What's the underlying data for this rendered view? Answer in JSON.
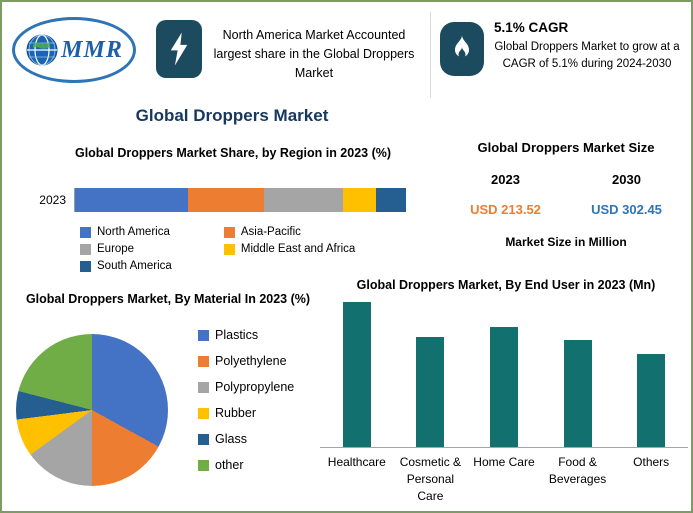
{
  "header": {
    "logo_text": "MMR",
    "highlight_text": "North America Market Accounted largest share in the Global Droppers Market",
    "cagr_title": "5.1% CAGR",
    "cagr_text": "Global Droppers Market to grow at a CAGR of 5.1% during 2024-2030",
    "icon_bg_color": "#1C4A5E"
  },
  "page_title": "Global Droppers Market",
  "title_color": "#17375E",
  "market_size": {
    "title": "Global Droppers Market Size",
    "year_start": "2023",
    "year_end": "2030",
    "value_start": "USD 213.52",
    "value_end": "USD 302.45",
    "value_start_color": "#ED7D31",
    "value_end_color": "#2E75B6",
    "note": "Market Size in Million"
  },
  "chart_data": [
    {
      "type": "bar",
      "subtype": "stacked-horizontal",
      "title": "Global Droppers Market Share, by Region in 2023 (%)",
      "categories": [
        "2023"
      ],
      "series": [
        {
          "name": "North America",
          "values": [
            34
          ],
          "color": "#4472C4"
        },
        {
          "name": "Asia-Pacific",
          "values": [
            23
          ],
          "color": "#ED7D31"
        },
        {
          "name": "Europe",
          "values": [
            24
          ],
          "color": "#A5A5A5"
        },
        {
          "name": "Middle East and Africa",
          "values": [
            10
          ],
          "color": "#FFC000"
        },
        {
          "name": "South America",
          "values": [
            9
          ],
          "color": "#255E91"
        }
      ],
      "units": "%",
      "xlim": [
        0,
        100
      ],
      "legend_position": "bottom",
      "grid": false
    },
    {
      "type": "pie",
      "title": "Global Droppers Market, By Material In 2023 (%)",
      "labels": [
        "Plastics",
        "Polyethylene",
        "Polypropylene",
        "Rubber",
        "Glass",
        "other"
      ],
      "values": [
        33,
        17,
        15,
        8,
        6,
        21
      ],
      "colors": [
        "#4472C4",
        "#ED7D31",
        "#A5A5A5",
        "#FFC000",
        "#255E91",
        "#70AD47"
      ],
      "units": "%",
      "legend_position": "right"
    },
    {
      "type": "bar",
      "title": "Global Droppers Market, By End User in 2023 (Mn)",
      "categories": [
        "Healthcare",
        "Cosmetic & Personal Care",
        "Home Care",
        "Food & Beverages",
        "Others"
      ],
      "values": [
        145,
        110,
        120,
        107,
        93
      ],
      "color": "#12716F",
      "units": "Mn",
      "ylim": [
        0,
        150
      ],
      "grid": false,
      "legend_position": "none"
    }
  ]
}
